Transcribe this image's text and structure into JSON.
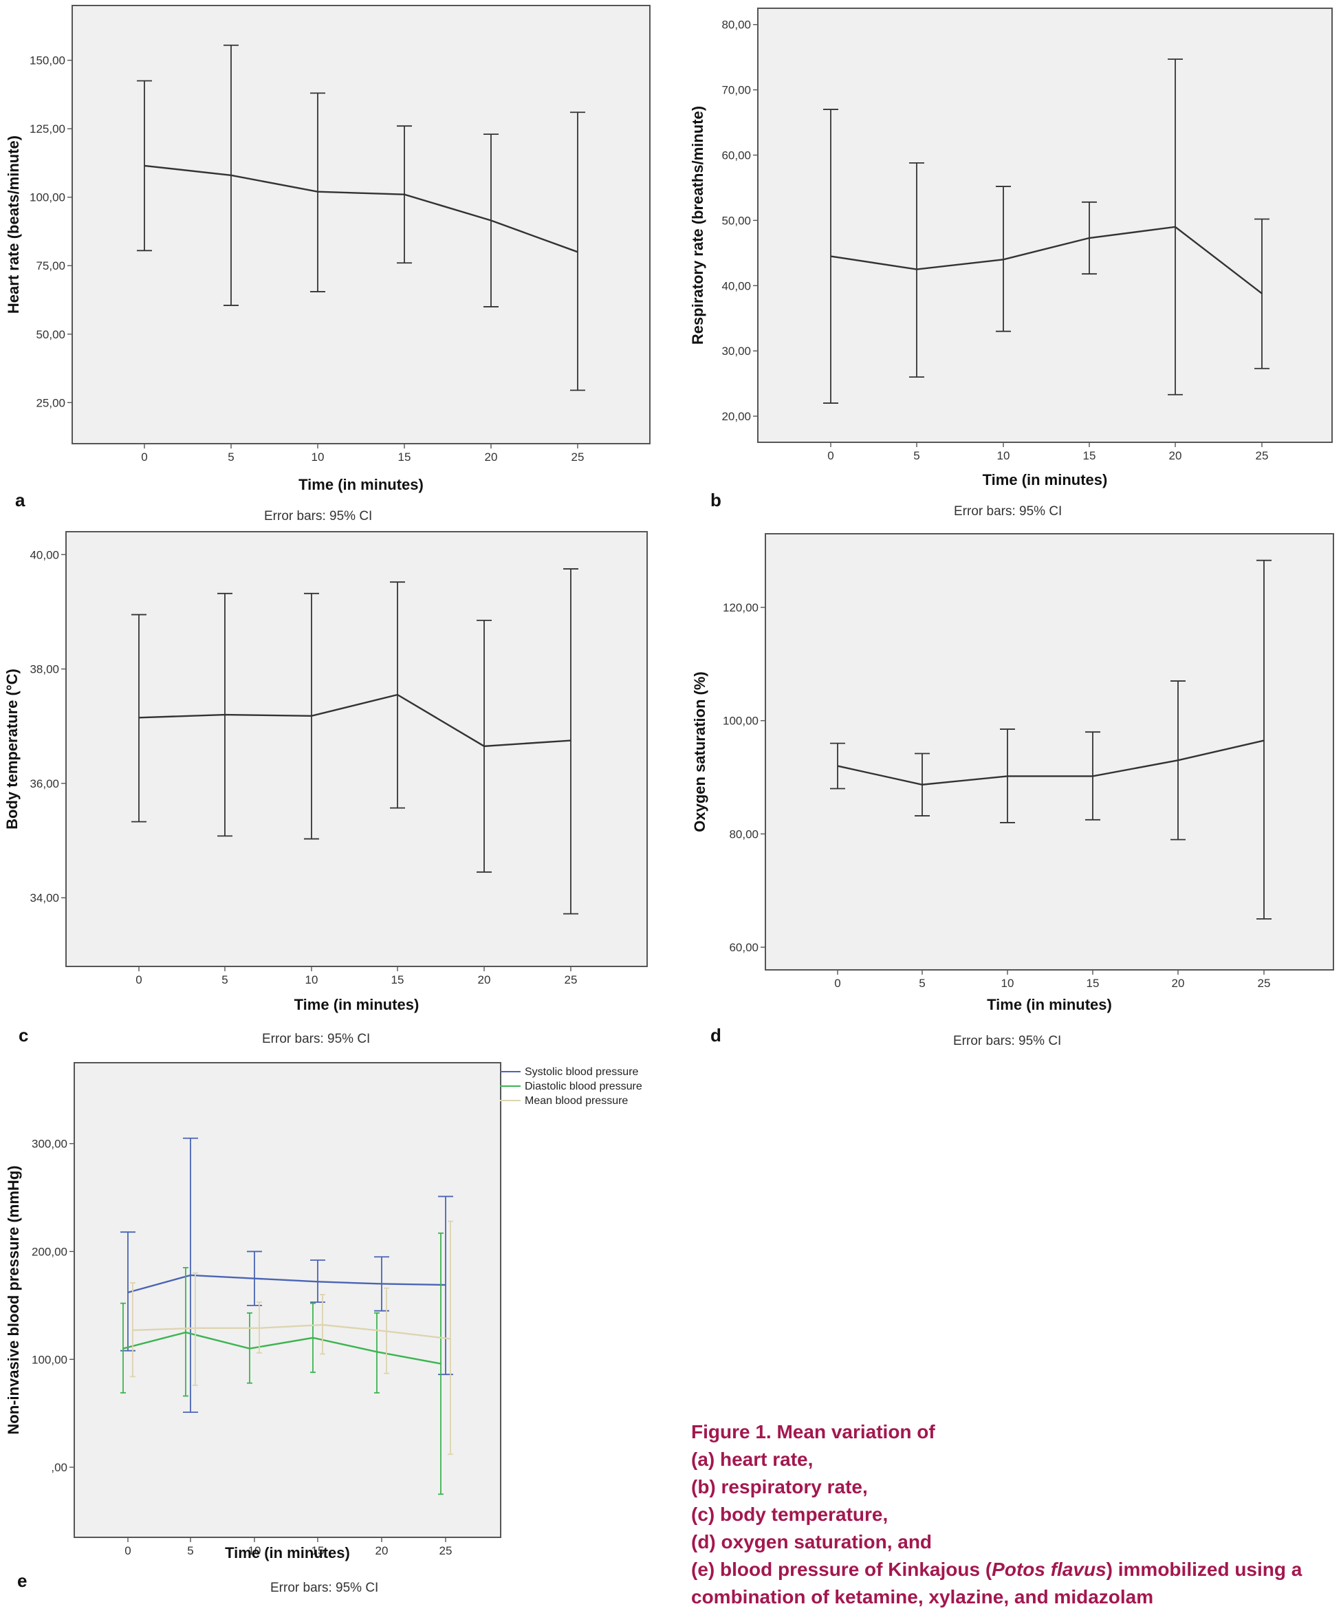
{
  "chart_data": [
    {
      "id": "a",
      "type": "line",
      "panel_letter": "a",
      "xlabel": "Time (in minutes)",
      "ylabel": "Heart rate (beats/minute)",
      "error_note": "Error bars: 95% CI",
      "categories": [
        "0",
        "5",
        "10",
        "15",
        "20",
        "25"
      ],
      "ylim": [
        10,
        170
      ],
      "yticks": [
        25,
        50,
        75,
        100,
        125,
        150
      ],
      "ytick_labels": [
        "25,00",
        "50,00",
        "75,00",
        "100,00",
        "125,00",
        "150,00"
      ],
      "series": [
        {
          "name": "Heart rate",
          "color": "#333333",
          "values": [
            111.5,
            108,
            102,
            101,
            91.5,
            80
          ],
          "lower": [
            80.5,
            60.5,
            65.5,
            76,
            60,
            29.5
          ],
          "upper": [
            142.5,
            155.5,
            138,
            126,
            123,
            131
          ]
        }
      ]
    },
    {
      "id": "b",
      "type": "line",
      "panel_letter": "b",
      "xlabel": "Time (in minutes)",
      "ylabel": "Respiratory rate (breaths/minute)",
      "error_note": "Error bars: 95% CI",
      "categories": [
        "0",
        "5",
        "10",
        "15",
        "20",
        "25"
      ],
      "ylim": [
        16,
        82.5
      ],
      "yticks": [
        20,
        30,
        40,
        50,
        60,
        70,
        80
      ],
      "ytick_labels": [
        "20,00",
        "30,00",
        "40,00",
        "50,00",
        "60,00",
        "70,00",
        "80,00"
      ],
      "series": [
        {
          "name": "Respiratory rate",
          "color": "#333333",
          "values": [
            44.5,
            42.5,
            44,
            47.3,
            49,
            38.8
          ],
          "lower": [
            22,
            26,
            33,
            41.8,
            23.3,
            27.3
          ],
          "upper": [
            67,
            58.8,
            55.2,
            52.8,
            74.7,
            50.2
          ]
        }
      ]
    },
    {
      "id": "c",
      "type": "line",
      "panel_letter": "c",
      "xlabel": "Time (in minutes)",
      "ylabel": "Body temperature (°C)",
      "error_note": "Error bars: 95% CI",
      "categories": [
        "0",
        "5",
        "10",
        "15",
        "20",
        "25"
      ],
      "ylim": [
        32.8,
        40.4
      ],
      "yticks": [
        34,
        36,
        38,
        40
      ],
      "ytick_labels": [
        "34,00",
        "36,00",
        "38,00",
        "40,00"
      ],
      "series": [
        {
          "name": "Body temperature",
          "color": "#333333",
          "values": [
            37.15,
            37.2,
            37.18,
            37.55,
            36.65,
            36.75
          ],
          "lower": [
            35.33,
            35.08,
            35.03,
            35.57,
            34.45,
            33.72
          ],
          "upper": [
            38.95,
            39.32,
            39.32,
            39.52,
            38.85,
            39.75
          ]
        }
      ]
    },
    {
      "id": "d",
      "type": "line",
      "panel_letter": "d",
      "xlabel": "Time (in minutes)",
      "ylabel": "Oxygen saturation (%)",
      "error_note": "Error bars: 95% CI",
      "categories": [
        "0",
        "5",
        "10",
        "15",
        "20",
        "25"
      ],
      "ylim": [
        56,
        133
      ],
      "yticks": [
        60,
        80,
        100,
        120
      ],
      "ytick_labels": [
        "60,00",
        "80,00",
        "100,00",
        "120,00"
      ],
      "series": [
        {
          "name": "Oxygen saturation",
          "color": "#333333",
          "values": [
            92,
            88.7,
            90.2,
            90.2,
            93,
            96.5
          ],
          "lower": [
            88,
            83.2,
            82,
            82.5,
            79,
            65
          ],
          "upper": [
            96,
            94.2,
            98.5,
            98,
            107,
            128.3
          ]
        }
      ]
    },
    {
      "id": "e",
      "type": "line",
      "panel_letter": "e",
      "xlabel": "Time (in minutes)",
      "ylabel": "Non-invasive blood pressure (mmHg)",
      "error_note": "Error bars: 95% CI",
      "categories": [
        "0",
        "5",
        "10",
        "15",
        "20",
        "25"
      ],
      "ylim": [
        -65,
        375
      ],
      "yticks": [
        0,
        100,
        200,
        300
      ],
      "ytick_labels": [
        ",00",
        "100,00",
        "200,00",
        "300,00"
      ],
      "legend_position": "top-right",
      "series": [
        {
          "name": "Systolic blood pressure",
          "color": "#4a64b4",
          "values": [
            162,
            178,
            175,
            172,
            170,
            169
          ],
          "lower": [
            108,
            51,
            150,
            153,
            145,
            86
          ],
          "upper": [
            218,
            305,
            200,
            192,
            195,
            251
          ]
        },
        {
          "name": "Diastolic blood pressure",
          "color": "#3cb450",
          "values": [
            110,
            125,
            110,
            120,
            107,
            96
          ],
          "lower": [
            69,
            66,
            78,
            88,
            69,
            -25
          ],
          "upper": [
            152,
            185,
            143,
            152,
            143,
            217
          ]
        },
        {
          "name": "Mean blood pressure",
          "color": "#ddd4b0",
          "values": [
            127,
            129,
            129,
            132,
            126,
            119
          ],
          "lower": [
            84,
            76,
            106,
            105,
            87,
            12
          ],
          "upper": [
            171,
            180,
            153,
            160,
            166,
            228
          ]
        }
      ]
    }
  ],
  "caption": {
    "line1": "Figure 1. Mean variation of",
    "line2": "(a) heart rate,",
    "line3": "(b) respiratory rate,",
    "line4": "(c) body temperature,",
    "line5": "(d) oxygen saturation, and",
    "line6_before": "(e) blood pressure of Kinkajous (",
    "line6_italic": "Potos flavus",
    "line6_after": ") immobilized using a",
    "line7": "combination of ketamine, xylazine, and midazolam"
  }
}
